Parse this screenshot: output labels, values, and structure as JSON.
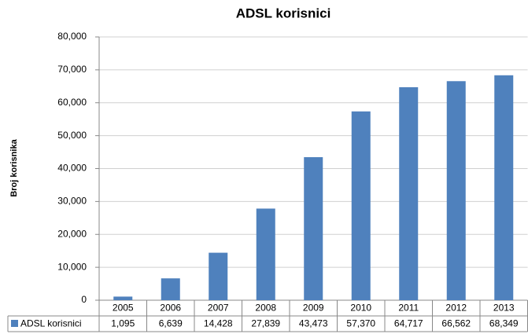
{
  "chart_data": {
    "type": "bar",
    "title": "ADSL korisnici",
    "y_label": "Broj korisnika",
    "categories": [
      "2005",
      "2006",
      "2007",
      "2008",
      "2009",
      "2010",
      "2011",
      "2012",
      "2013"
    ],
    "series": [
      {
        "name": "ADSL korisnici",
        "color": "#4f81bd",
        "values": [
          1095,
          6639,
          14428,
          27839,
          43473,
          57370,
          64717,
          66562,
          68349
        ],
        "value_labels": [
          "1,095",
          "6,639",
          "14,428",
          "27,839",
          "43,473",
          "57,370",
          "64,717",
          "66,562",
          "68,349"
        ]
      }
    ],
    "ylim": [
      0,
      80000
    ],
    "yticks": [
      0,
      {
        "value": 10000,
        "label": "10,000"
      },
      {
        "value": 20000,
        "label": "20,000"
      },
      {
        "value": 30000,
        "label": "30,000"
      },
      {
        "value": 40000,
        "label": "40,000"
      },
      {
        "value": 50000,
        "label": "50,000"
      },
      {
        "value": 60000,
        "label": "60,000"
      },
      {
        "value": 70000,
        "label": "70,000"
      },
      {
        "value": 80000,
        "label": "80,000"
      }
    ],
    "grid": true
  }
}
